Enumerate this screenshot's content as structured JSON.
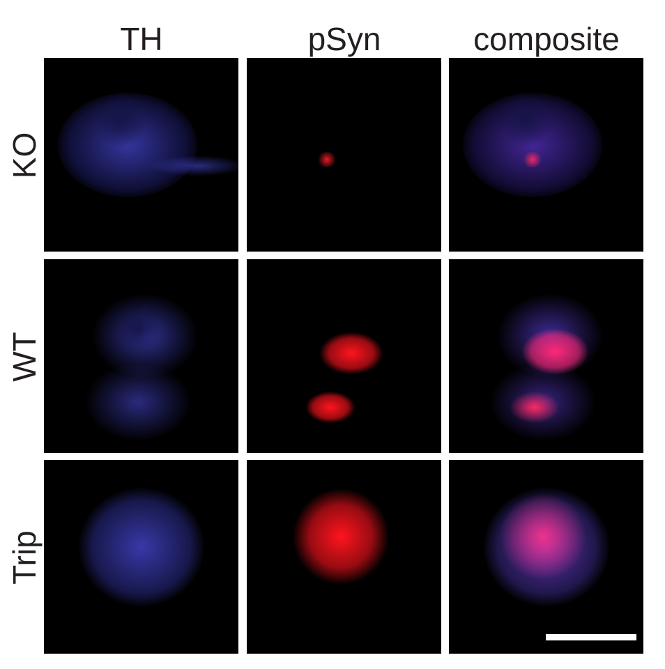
{
  "columns": [
    "TH",
    "pSyn",
    "composite"
  ],
  "rows": [
    "KO",
    "WT",
    "Trip"
  ],
  "colors": {
    "th_channel": "#3a3ad0",
    "psyn_channel": "#ff1020",
    "composite": "#e0206a",
    "background": "#000000",
    "scale_bar": "#ffffff"
  },
  "psyn_intensity": {
    "KO": "low",
    "WT": "high",
    "Trip": "high"
  }
}
